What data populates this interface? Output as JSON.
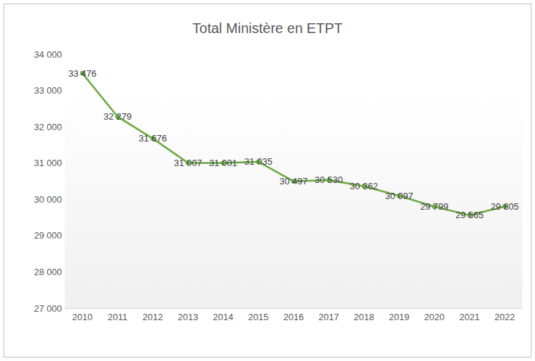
{
  "chart_data": {
    "type": "line",
    "title": "Total Ministère en ETPT",
    "categories": [
      "2010",
      "2011",
      "2012",
      "2013",
      "2014",
      "2015",
      "2016",
      "2017",
      "2018",
      "2019",
      "2020",
      "2021",
      "2022"
    ],
    "values": [
      33476,
      32279,
      31676,
      31007,
      31001,
      31035,
      30497,
      30530,
      30362,
      30097,
      29799,
      29565,
      29805
    ],
    "value_labels": [
      "33 476",
      "32 279",
      "31 676",
      "31 007",
      "31 001",
      "31 035",
      "30 497",
      "30 530",
      "30 362",
      "30 097",
      "29 799",
      "29 565",
      "29 805"
    ],
    "color": "#70ad47",
    "marker": "circle",
    "data_labels": true,
    "grid": false,
    "ylim": [
      27000,
      34000
    ],
    "yticks": [
      {
        "value": 27000,
        "label": "27 000"
      },
      {
        "value": 28000,
        "label": "28 000"
      },
      {
        "value": 29000,
        "label": "29 000"
      },
      {
        "value": 30000,
        "label": "30 000"
      },
      {
        "value": 31000,
        "label": "31 000"
      },
      {
        "value": 32000,
        "label": "32 000"
      },
      {
        "value": 33000,
        "label": "33 000"
      },
      {
        "value": 34000,
        "label": "34 000"
      }
    ]
  }
}
